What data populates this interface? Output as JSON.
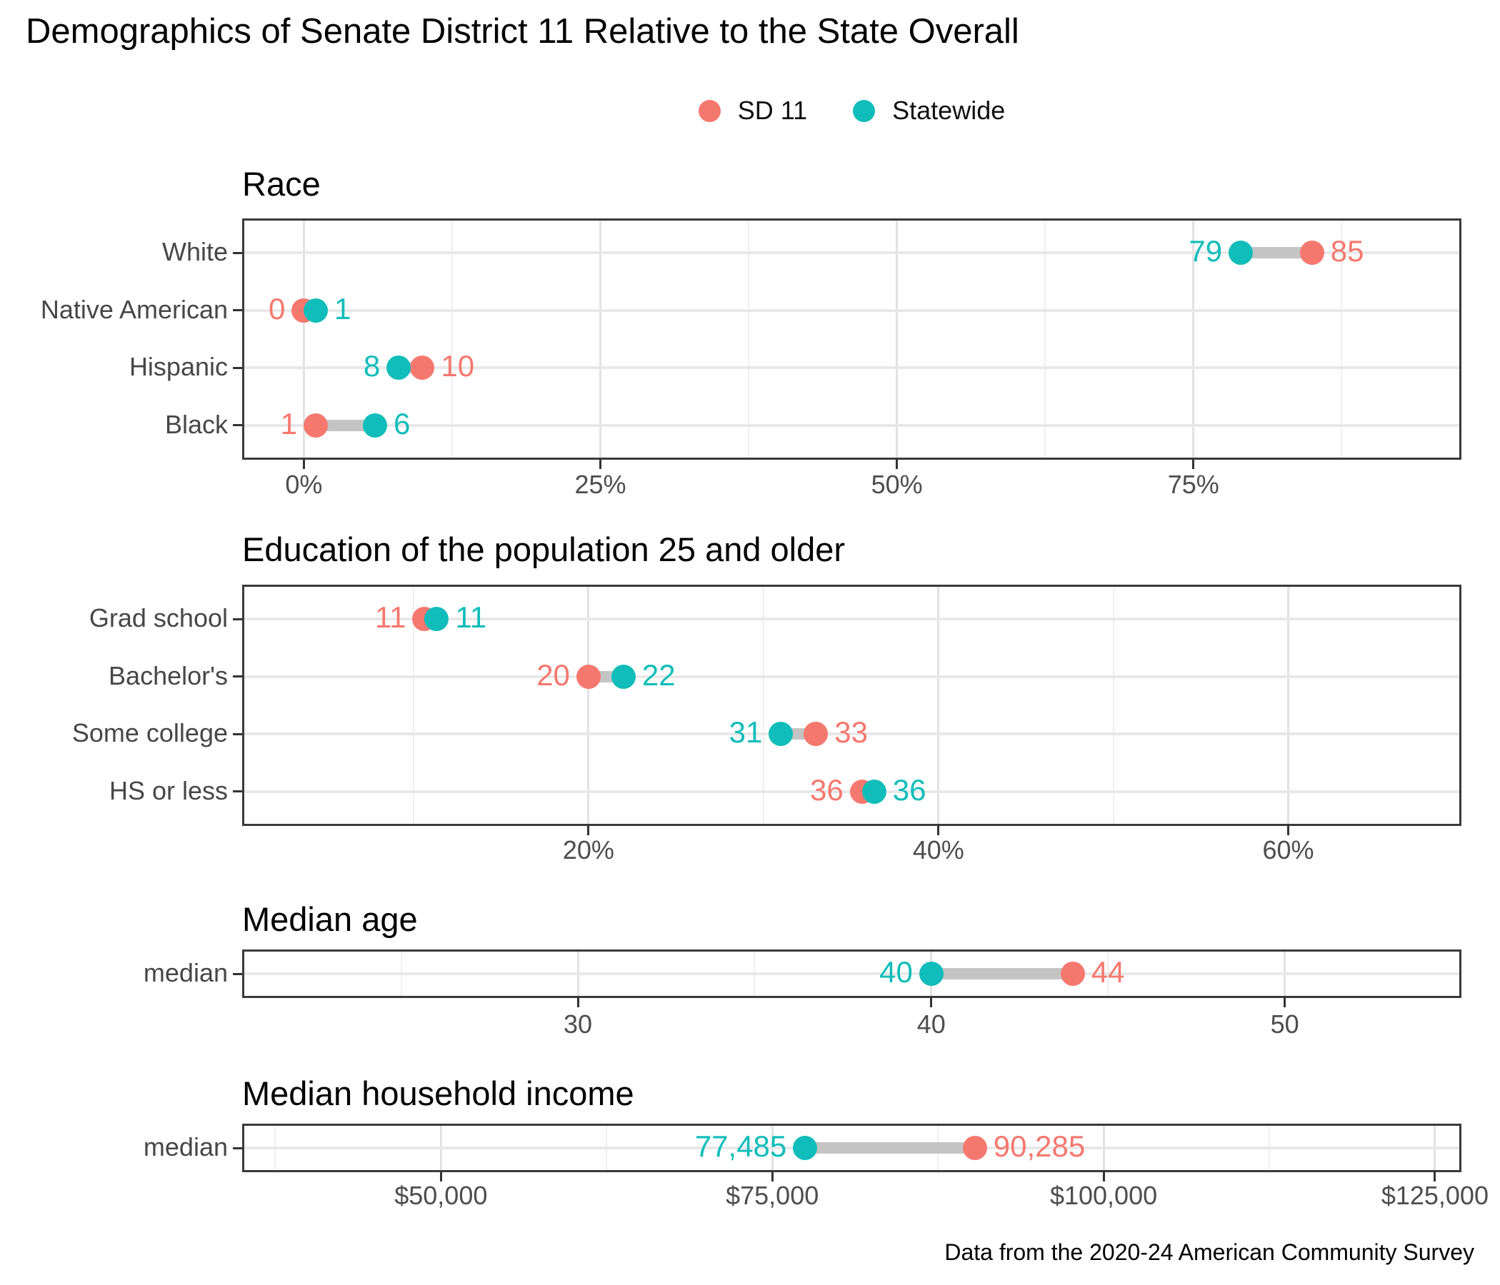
{
  "title": "Demographics of Senate District 11 Relative to the State Overall",
  "caption": "Data from the 2020-24 American Community Survey",
  "colors": {
    "sd11": "#F5786F",
    "statewide": "#10BDBA",
    "segment": "#C4C4C4"
  },
  "legend": {
    "items": [
      {
        "key": "sd11",
        "label": "SD 11",
        "color": "#F5786F"
      },
      {
        "key": "statewide",
        "label": "Statewide",
        "color": "#10BDBA"
      }
    ]
  },
  "chart_data": [
    {
      "type": "dumbbell",
      "title": "Race",
      "categories": [
        "White",
        "Native American",
        "Hispanic",
        "Black"
      ],
      "series": [
        {
          "name": "SD 11",
          "key": "sd11",
          "values": [
            85,
            0,
            10,
            1
          ],
          "labels": [
            "85",
            "0",
            "10",
            "1"
          ]
        },
        {
          "name": "Statewide",
          "key": "statewide",
          "values": [
            79,
            1,
            8,
            6
          ],
          "labels": [
            "79",
            "1",
            "8",
            "6"
          ]
        }
      ],
      "axis": {
        "min": -5.2,
        "max": 97.6,
        "major_ticks": [
          {
            "value": 0,
            "label": "0%"
          },
          {
            "value": 25,
            "label": "25%"
          },
          {
            "value": 50,
            "label": "50%"
          },
          {
            "value": 75,
            "label": "75%"
          }
        ],
        "minor_ticks": [
          12.5,
          37.5,
          62.5,
          87.5
        ]
      }
    },
    {
      "type": "dumbbell",
      "title": "Education of the population 25 and older",
      "categories": [
        "Grad school",
        "Bachelor's",
        "Some college",
        "HS or less"
      ],
      "series": [
        {
          "name": "SD 11",
          "key": "sd11",
          "values": [
            11,
            20,
            33,
            36
          ],
          "labels": [
            "11",
            "20",
            "33",
            "36"
          ]
        },
        {
          "name": "Statewide",
          "key": "statewide",
          "values": [
            11,
            22,
            31,
            36
          ],
          "labels": [
            "11",
            "22",
            "31",
            "36"
          ]
        }
      ],
      "axis": {
        "min": 0.2,
        "max": 69.9,
        "major_ticks": [
          {
            "value": 20,
            "label": "20%"
          },
          {
            "value": 40,
            "label": "40%"
          },
          {
            "value": 60,
            "label": "60%"
          }
        ],
        "minor_ticks": [
          10,
          30,
          50
        ]
      }
    },
    {
      "type": "dumbbell",
      "title": "Median age",
      "categories": [
        "median"
      ],
      "series": [
        {
          "name": "SD 11",
          "key": "sd11",
          "values": [
            44
          ],
          "labels": [
            "44"
          ]
        },
        {
          "name": "Statewide",
          "key": "statewide",
          "values": [
            40
          ],
          "labels": [
            "40"
          ]
        }
      ],
      "axis": {
        "min": 20.5,
        "max": 55.0,
        "major_ticks": [
          {
            "value": 30,
            "label": "30"
          },
          {
            "value": 40,
            "label": "40"
          },
          {
            "value": 50,
            "label": "50"
          }
        ],
        "minor_ticks": [
          25,
          35,
          45
        ]
      }
    },
    {
      "type": "dumbbell",
      "title": "Median household income",
      "categories": [
        "median"
      ],
      "series": [
        {
          "name": "SD 11",
          "key": "sd11",
          "values": [
            90285
          ],
          "labels": [
            "90,285"
          ]
        },
        {
          "name": "Statewide",
          "key": "statewide",
          "values": [
            77485
          ],
          "labels": [
            "77,485"
          ]
        }
      ],
      "axis": {
        "min": 35000,
        "max": 127000,
        "major_ticks": [
          {
            "value": 50000,
            "label": "$50,000"
          },
          {
            "value": 75000,
            "label": "$75,000"
          },
          {
            "value": 100000,
            "label": "$100,000"
          },
          {
            "value": 125000,
            "label": "$125,000"
          }
        ],
        "minor_ticks": [
          37500,
          62500,
          87500,
          112500
        ]
      }
    }
  ]
}
